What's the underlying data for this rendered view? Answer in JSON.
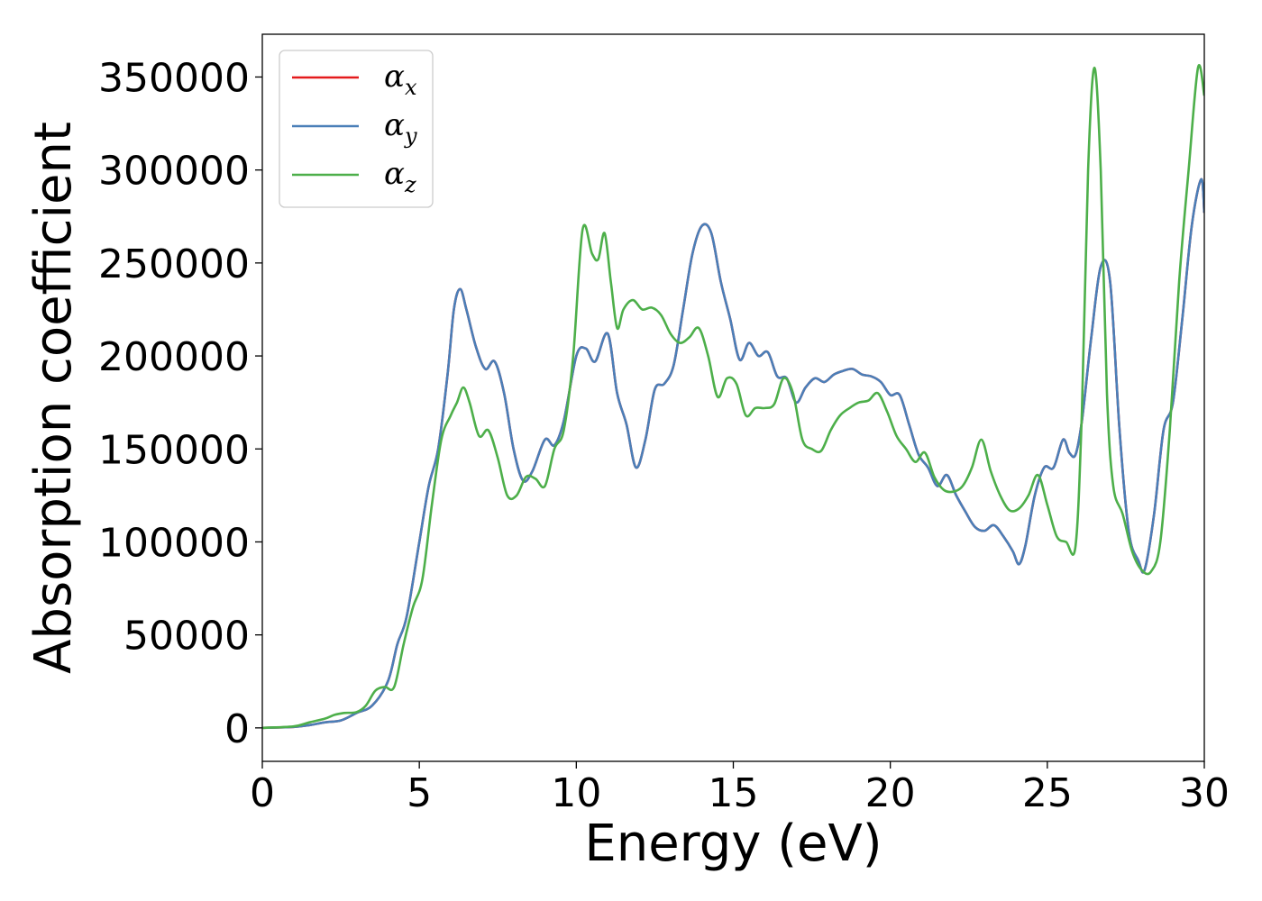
{
  "chart_data": {
    "type": "line",
    "xlabel": "Energy (eV)",
    "ylabel": "Absorption coefficient",
    "xlim": [
      0,
      30
    ],
    "ylim": [
      -18000,
      373000
    ],
    "xticks": [
      "0",
      "5",
      "10",
      "15",
      "20",
      "25",
      "30"
    ],
    "yticks": [
      "0",
      "50000",
      "100000",
      "150000",
      "200000",
      "250000",
      "300000",
      "350000"
    ],
    "grid": false,
    "legend_position": "top-left",
    "series": [
      {
        "name": "α",
        "subscript": "x",
        "color": "#e41a1c",
        "x": [
          0,
          1,
          1.5,
          2,
          2.5,
          3,
          3.5,
          4,
          4.3,
          4.6,
          5,
          5.3,
          5.6,
          5.9,
          6.1,
          6.3,
          6.5,
          6.8,
          7.1,
          7.4,
          7.7,
          8,
          8.3,
          8.6,
          9,
          9.3,
          9.6,
          10,
          10.3,
          10.6,
          11,
          11.3,
          11.6,
          11.9,
          12.2,
          12.5,
          12.8,
          13.1,
          13.4,
          13.7,
          14,
          14.3,
          14.6,
          14.9,
          15.2,
          15.5,
          15.8,
          16.1,
          16.4,
          16.7,
          17,
          17.3,
          17.6,
          17.9,
          18.2,
          18.5,
          18.8,
          19.1,
          19.4,
          19.7,
          20,
          20.3,
          20.6,
          20.9,
          21.2,
          21.5,
          21.8,
          22.1,
          22.4,
          22.7,
          23,
          23.3,
          23.6,
          23.9,
          24.1,
          24.3,
          24.6,
          24.9,
          25.2,
          25.5,
          25.7,
          25.9,
          26.1,
          26.4,
          26.7,
          27,
          27.3,
          27.6,
          27.9,
          28.1,
          28.4,
          28.7,
          29,
          29.3,
          29.6,
          29.9,
          30
        ],
        "y": [
          0,
          500,
          1500,
          3000,
          4000,
          8000,
          12000,
          25000,
          45000,
          60000,
          100000,
          130000,
          150000,
          190000,
          225000,
          236000,
          225000,
          205000,
          193000,
          197000,
          180000,
          150000,
          133000,
          138000,
          155000,
          152000,
          165000,
          200000,
          204000,
          197000,
          212000,
          180000,
          163000,
          140000,
          155000,
          182000,
          185000,
          195000,
          225000,
          255000,
          270000,
          266000,
          240000,
          220000,
          198000,
          207000,
          200000,
          202000,
          189000,
          188000,
          175000,
          183000,
          188000,
          186000,
          190000,
          192000,
          193000,
          190000,
          189000,
          186000,
          179000,
          179000,
          163000,
          147000,
          140000,
          130000,
          136000,
          125000,
          116000,
          108000,
          106000,
          109000,
          103000,
          95000,
          88000,
          98000,
          125000,
          140000,
          140000,
          155000,
          148000,
          147000,
          165000,
          210000,
          248000,
          240000,
          160000,
          105000,
          90000,
          85000,
          115000,
          160000,
          175000,
          220000,
          270000,
          295000,
          277000
        ]
      },
      {
        "name": "α",
        "subscript": "y",
        "color": "#4a7fb8",
        "x": [
          0,
          1,
          1.5,
          2,
          2.5,
          3,
          3.5,
          4,
          4.3,
          4.6,
          5,
          5.3,
          5.6,
          5.9,
          6.1,
          6.3,
          6.5,
          6.8,
          7.1,
          7.4,
          7.7,
          8,
          8.3,
          8.6,
          9,
          9.3,
          9.6,
          10,
          10.3,
          10.6,
          11,
          11.3,
          11.6,
          11.9,
          12.2,
          12.5,
          12.8,
          13.1,
          13.4,
          13.7,
          14,
          14.3,
          14.6,
          14.9,
          15.2,
          15.5,
          15.8,
          16.1,
          16.4,
          16.7,
          17,
          17.3,
          17.6,
          17.9,
          18.2,
          18.5,
          18.8,
          19.1,
          19.4,
          19.7,
          20,
          20.3,
          20.6,
          20.9,
          21.2,
          21.5,
          21.8,
          22.1,
          22.4,
          22.7,
          23,
          23.3,
          23.6,
          23.9,
          24.1,
          24.3,
          24.6,
          24.9,
          25.2,
          25.5,
          25.7,
          25.9,
          26.1,
          26.4,
          26.7,
          27,
          27.3,
          27.6,
          27.9,
          28.1,
          28.4,
          28.7,
          29,
          29.3,
          29.6,
          29.9,
          30
        ],
        "y": [
          0,
          500,
          1500,
          3000,
          4000,
          8000,
          12000,
          25000,
          45000,
          60000,
          100000,
          130000,
          150000,
          190000,
          225000,
          236000,
          225000,
          205000,
          193000,
          197000,
          180000,
          150000,
          133000,
          138000,
          155000,
          152000,
          165000,
          200000,
          204000,
          197000,
          212000,
          180000,
          163000,
          140000,
          155000,
          182000,
          185000,
          195000,
          225000,
          255000,
          270000,
          266000,
          240000,
          220000,
          198000,
          207000,
          200000,
          202000,
          189000,
          188000,
          175000,
          183000,
          188000,
          186000,
          190000,
          192000,
          193000,
          190000,
          189000,
          186000,
          179000,
          179000,
          163000,
          147000,
          140000,
          130000,
          136000,
          125000,
          116000,
          108000,
          106000,
          109000,
          103000,
          95000,
          88000,
          98000,
          125000,
          140000,
          140000,
          155000,
          148000,
          147000,
          165000,
          210000,
          248000,
          240000,
          160000,
          105000,
          90000,
          85000,
          115000,
          160000,
          175000,
          220000,
          270000,
          295000,
          277000
        ]
      },
      {
        "name": "α",
        "subscript": "z",
        "color": "#4daf4a",
        "x": [
          0,
          1,
          1.5,
          2,
          2.3,
          2.6,
          3,
          3.3,
          3.6,
          3.9,
          4.2,
          4.5,
          4.8,
          5.1,
          5.4,
          5.7,
          6,
          6.2,
          6.4,
          6.6,
          6.9,
          7.2,
          7.5,
          7.8,
          8.1,
          8.4,
          8.7,
          9,
          9.3,
          9.6,
          9.9,
          10.2,
          10.5,
          10.7,
          10.9,
          11.1,
          11.3,
          11.5,
          11.8,
          12.1,
          12.4,
          12.7,
          13,
          13.3,
          13.6,
          13.9,
          14.2,
          14.5,
          14.8,
          15.1,
          15.4,
          15.7,
          16,
          16.3,
          16.6,
          16.9,
          17.2,
          17.5,
          17.8,
          18.1,
          18.4,
          18.7,
          19,
          19.3,
          19.6,
          19.9,
          20.2,
          20.5,
          20.8,
          21.1,
          21.4,
          21.7,
          22,
          22.3,
          22.6,
          22.9,
          23.2,
          23.5,
          23.8,
          24.1,
          24.4,
          24.7,
          25,
          25.3,
          25.6,
          25.9,
          26.1,
          26.3,
          26.5,
          26.7,
          26.9,
          27.1,
          27.4,
          27.7,
          28,
          28.3,
          28.6,
          28.9,
          29.2,
          29.5,
          29.8,
          30
        ],
        "y": [
          0,
          800,
          3000,
          5000,
          7000,
          8000,
          8500,
          12000,
          20000,
          22000,
          22000,
          45000,
          65000,
          80000,
          120000,
          155000,
          168000,
          175000,
          183000,
          175000,
          157000,
          160000,
          145000,
          125000,
          125000,
          135000,
          134000,
          130000,
          150000,
          160000,
          200000,
          268000,
          255000,
          252000,
          266000,
          240000,
          215000,
          225000,
          230000,
          225000,
          226000,
          222000,
          212000,
          207000,
          210000,
          215000,
          200000,
          178000,
          188000,
          185000,
          168000,
          172000,
          172000,
          174000,
          188000,
          180000,
          155000,
          150000,
          149000,
          160000,
          168000,
          172000,
          175000,
          176000,
          180000,
          170000,
          157000,
          150000,
          143000,
          148000,
          135000,
          128000,
          127000,
          130000,
          140000,
          155000,
          138000,
          125000,
          117000,
          118000,
          125000,
          136000,
          120000,
          103000,
          100000,
          98000,
          170000,
          300000,
          355000,
          300000,
          180000,
          130000,
          115000,
          95000,
          85000,
          84000,
          100000,
          160000,
          240000,
          300000,
          355000,
          340000
        ]
      }
    ]
  }
}
